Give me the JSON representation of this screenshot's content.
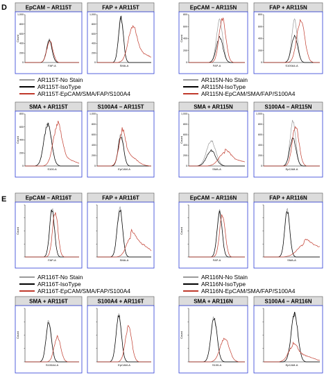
{
  "colors": {
    "no_stain": "#9a9a9a",
    "isotype": "#000000",
    "stained": "#c0392b",
    "frame": "#2a3bd6",
    "title_box": "#dcdcdc"
  },
  "chart_data": [
    {
      "panel_label": "D",
      "type": "histogram",
      "groups": [
        {
          "legend": [
            "AR115T-No Stain",
            "AR115T-IsoType",
            "AR115T-EpCAM/SMA/FAP/S100A4"
          ],
          "charts": [
            {
              "title": "EpCAM − AR115T",
              "xlabel": "FAP-A",
              "ylabel": "Count",
              "yticks": [
                "1,000",
                "800",
                "600",
                "400",
                "200",
                "0"
              ],
              "series": [
                {
                  "name": "no_stain",
                  "peak": 0.45,
                  "width": 0.05,
                  "height": 0.48
                },
                {
                  "name": "isotype",
                  "peak": 0.45,
                  "width": 0.05,
                  "height": 0.47
                },
                {
                  "name": "stained",
                  "peak": 0.46,
                  "width": 0.055,
                  "height": 0.46
                }
              ]
            },
            {
              "title": "FAP + AR115T",
              "xlabel": "SMA-A",
              "ylabel": "",
              "yticks": [
                "1,000",
                "800",
                "600",
                "400",
                "200",
                "0"
              ],
              "series": [
                {
                  "name": "no_stain",
                  "peak": 0.44,
                  "width": 0.045,
                  "height": 0.97
                },
                {
                  "name": "isotype",
                  "peak": 0.44,
                  "width": 0.045,
                  "height": 0.94
                },
                {
                  "name": "stained",
                  "peak": 0.65,
                  "width": 0.08,
                  "height": 0.7,
                  "tail": 0.18
                }
              ]
            },
            {
              "title": "SMA + AR115T",
              "xlabel": "S100-A",
              "ylabel": "Count",
              "yticks": [
                "800",
                "600",
                "400",
                "200",
                "0"
              ],
              "series": [
                {
                  "name": "no_stain",
                  "peak": 0.42,
                  "width": 0.07,
                  "height": 0.83
                },
                {
                  "name": "isotype",
                  "peak": 0.42,
                  "width": 0.07,
                  "height": 0.81
                },
                {
                  "name": "stained",
                  "peak": 0.6,
                  "width": 0.08,
                  "height": 0.77,
                  "tail": 0.12
                }
              ]
            },
            {
              "title": "S100A4 − AR115T",
              "xlabel": "EpCAM-A",
              "ylabel": "",
              "yticks": [
                "1,000",
                "800",
                "600",
                "400",
                "200",
                "0"
              ],
              "series": [
                {
                  "name": "no_stain",
                  "peak": 0.44,
                  "width": 0.05,
                  "height": 0.61
                },
                {
                  "name": "isotype",
                  "peak": 0.44,
                  "width": 0.05,
                  "height": 0.59
                },
                {
                  "name": "stained",
                  "peak": 0.46,
                  "width": 0.06,
                  "height": 0.6,
                  "tail": 0.2
                }
              ]
            }
          ]
        },
        {
          "legend": [
            "AR115N-No Stain",
            "AR115N-IsoType",
            "AR115N-EpCAM/SMA/FAP/S100A4"
          ],
          "charts": [
            {
              "title": "EpCAM − AR115N",
              "xlabel": "FAP-A",
              "ylabel": "Count",
              "yticks": [
                "800",
                "600",
                "400",
                "200",
                "0"
              ],
              "series": [
                {
                  "name": "no_stain",
                  "peak": 0.55,
                  "width": 0.055,
                  "height": 0.88
                },
                {
                  "name": "isotype",
                  "peak": 0.55,
                  "width": 0.06,
                  "height": 0.53
                },
                {
                  "name": "stained",
                  "peak": 0.6,
                  "width": 0.06,
                  "height": 0.92
                }
              ]
            },
            {
              "title": "FAP + AR115N",
              "xlabel": "S100A4-A",
              "ylabel": "",
              "yticks": [
                "800",
                "600",
                "400",
                "200",
                "0"
              ],
              "series": [
                {
                  "name": "no_stain",
                  "peak": 0.55,
                  "width": 0.05,
                  "height": 0.88
                },
                {
                  "name": "isotype",
                  "peak": 0.55,
                  "width": 0.055,
                  "height": 0.55
                },
                {
                  "name": "stained",
                  "peak": 0.66,
                  "width": 0.07,
                  "height": 0.9
                }
              ]
            },
            {
              "title": "SMA + AR115N",
              "xlabel": "SMA-A",
              "ylabel": "Count",
              "yticks": [
                "1,000",
                "800",
                "600",
                "400",
                "200",
                "0"
              ],
              "series": [
                {
                  "name": "no_stain",
                  "peak": 0.4,
                  "width": 0.08,
                  "height": 0.5
                },
                {
                  "name": "isotype",
                  "peak": 0.4,
                  "width": 0.08,
                  "height": 0.3
                },
                {
                  "name": "stained",
                  "peak": 0.64,
                  "width": 0.1,
                  "height": 0.25,
                  "tail": 0.1
                }
              ]
            },
            {
              "title": "S100A4 − AR115N",
              "xlabel": "EpCAM-A",
              "ylabel": "",
              "yticks": [
                "1,000",
                "800",
                "600",
                "400",
                "200",
                "0"
              ],
              "series": [
                {
                  "name": "no_stain",
                  "peak": 0.52,
                  "width": 0.05,
                  "height": 0.86
                },
                {
                  "name": "isotype",
                  "peak": 0.52,
                  "width": 0.055,
                  "height": 0.55
                },
                {
                  "name": "stained",
                  "peak": 0.57,
                  "width": 0.06,
                  "height": 0.78
                }
              ]
            }
          ]
        }
      ]
    },
    {
      "panel_label": "E",
      "type": "histogram",
      "groups": [
        {
          "legend": [
            "AR116T-No Stain",
            "AR116T-IsoType",
            "AR116T-EpCAM/SMA/FAP/S100A4"
          ],
          "charts": [
            {
              "title": "EpCAM − AR116T",
              "xlabel": "FAP-A",
              "ylabel": "Count",
              "yticks": [
                "",
                "",
                "",
                "",
                ""
              ],
              "series": [
                {
                  "name": "no_stain",
                  "peak": 0.5,
                  "width": 0.045,
                  "height": 0.95
                },
                {
                  "name": "isotype",
                  "peak": 0.5,
                  "width": 0.045,
                  "height": 0.93
                },
                {
                  "name": "stained",
                  "peak": 0.56,
                  "width": 0.05,
                  "height": 0.88
                }
              ]
            },
            {
              "title": "FAP + AR116T",
              "xlabel": "SMA-A",
              "ylabel": "",
              "yticks": [
                "",
                "",
                "",
                "",
                ""
              ],
              "series": [
                {
                  "name": "no_stain",
                  "peak": 0.42,
                  "width": 0.05,
                  "height": 0.95
                },
                {
                  "name": "isotype",
                  "peak": 0.42,
                  "width": 0.05,
                  "height": 0.93
                },
                {
                  "name": "stained",
                  "peak": 0.62,
                  "width": 0.08,
                  "height": 0.35,
                  "tail": 0.25
                }
              ]
            },
            {
              "title": "SMA + AR116T",
              "xlabel": "S100A4-A",
              "ylabel": "Count",
              "yticks": [
                "",
                "",
                "",
                "",
                ""
              ],
              "series": [
                {
                  "name": "no_stain",
                  "peak": 0.44,
                  "width": 0.05,
                  "height": 0.78
                },
                {
                  "name": "isotype",
                  "peak": 0.44,
                  "width": 0.05,
                  "height": 0.75
                },
                {
                  "name": "stained",
                  "peak": 0.6,
                  "width": 0.06,
                  "height": 0.48
                }
              ]
            },
            {
              "title": "S100A4 + AR116T",
              "xlabel": "EpCAM-A",
              "ylabel": "",
              "yticks": [
                "",
                "",
                "",
                "",
                ""
              ],
              "series": [
                {
                  "name": "no_stain",
                  "peak": 0.4,
                  "width": 0.05,
                  "height": 0.88
                },
                {
                  "name": "isotype",
                  "peak": 0.4,
                  "width": 0.05,
                  "height": 0.86
                },
                {
                  "name": "stained",
                  "peak": 0.58,
                  "width": 0.06,
                  "height": 0.66
                }
              ]
            }
          ]
        },
        {
          "legend": [
            "AR116N-No Stain",
            "AR116N-IsoType",
            "AR116N-EpCAM/SMA/FAP/S100A4"
          ],
          "charts": [
            {
              "title": "EpCAM − AR116N",
              "xlabel": "FAP-A",
              "ylabel": "Count",
              "yticks": [
                "",
                "",
                "",
                "",
                ""
              ],
              "series": [
                {
                  "name": "no_stain",
                  "peak": 0.55,
                  "width": 0.045,
                  "height": 0.88
                },
                {
                  "name": "isotype",
                  "peak": 0.55,
                  "width": 0.045,
                  "height": 0.86
                },
                {
                  "name": "stained",
                  "peak": 0.6,
                  "width": 0.05,
                  "height": 0.82
                }
              ]
            },
            {
              "title": "FAP + AR116N",
              "xlabel": "SMA-A",
              "ylabel": "",
              "yticks": [
                "",
                "",
                "",
                "",
                ""
              ],
              "series": [
                {
                  "name": "no_stain",
                  "peak": 0.42,
                  "width": 0.045,
                  "height": 0.92
                },
                {
                  "name": "isotype",
                  "peak": 0.42,
                  "width": 0.045,
                  "height": 0.9
                },
                {
                  "name": "stained",
                  "peak": 0.72,
                  "width": 0.12,
                  "height": 0.22,
                  "tail": 0.18
                }
              ]
            },
            {
              "title": "SMA + AR116N",
              "xlabel": "S100-A",
              "ylabel": "Count",
              "yticks": [
                "",
                "",
                "",
                "",
                ""
              ],
              "series": [
                {
                  "name": "no_stain",
                  "peak": 0.45,
                  "width": 0.055,
                  "height": 0.84
                },
                {
                  "name": "isotype",
                  "peak": 0.45,
                  "width": 0.055,
                  "height": 0.82
                },
                {
                  "name": "stained",
                  "peak": 0.64,
                  "width": 0.08,
                  "height": 0.45
                }
              ]
            },
            {
              "title": "S100A4 − AR116N",
              "xlabel": "EpCAM-A",
              "ylabel": "",
              "yticks": [
                "",
                "",
                "",
                "",
                ""
              ],
              "series": [
                {
                  "name": "no_stain",
                  "peak": 0.55,
                  "width": 0.06,
                  "height": 0.92
                },
                {
                  "name": "isotype",
                  "peak": 0.55,
                  "width": 0.06,
                  "height": 0.9
                },
                {
                  "name": "stained",
                  "peak": 0.52,
                  "width": 0.08,
                  "height": 0.28,
                  "tail": 0.12
                }
              ]
            }
          ]
        }
      ]
    }
  ]
}
